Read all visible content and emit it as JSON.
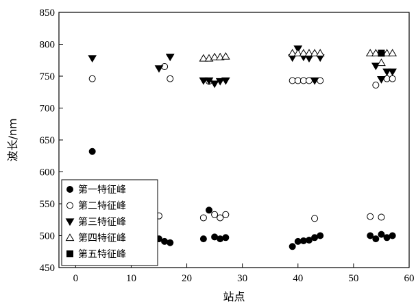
{
  "chart_data": {
    "type": "scatter",
    "xlabel": "站点",
    "ylabel": "波长/nm",
    "xlim": [
      -3,
      60
    ],
    "ylim": [
      450,
      850
    ],
    "xticks": [
      0,
      10,
      20,
      30,
      40,
      50,
      60
    ],
    "yticks": [
      450,
      500,
      550,
      600,
      650,
      700,
      750,
      800,
      850
    ],
    "grid": false,
    "legend_position": "bottom-left",
    "series": [
      {
        "name": "第一特征峰",
        "marker": "filled-circle",
        "color": "#000000",
        "points": [
          [
            3,
            632
          ],
          [
            15,
            495
          ],
          [
            16,
            491
          ],
          [
            17,
            489
          ],
          [
            23,
            495
          ],
          [
            24,
            540
          ],
          [
            25,
            498
          ],
          [
            26,
            495
          ],
          [
            27,
            497
          ],
          [
            39,
            483
          ],
          [
            40,
            491
          ],
          [
            41,
            492
          ],
          [
            42,
            493
          ],
          [
            43,
            497
          ],
          [
            44,
            500
          ],
          [
            53,
            500
          ],
          [
            54,
            495
          ],
          [
            55,
            502
          ],
          [
            56,
            497
          ],
          [
            57,
            500
          ]
        ]
      },
      {
        "name": "第二特征峰",
        "marker": "open-circle",
        "color": "#000000",
        "points": [
          [
            3,
            746
          ],
          [
            15,
            531
          ],
          [
            16,
            765
          ],
          [
            17,
            746
          ],
          [
            23,
            528
          ],
          [
            24,
            742
          ],
          [
            25,
            533
          ],
          [
            26,
            528
          ],
          [
            27,
            533
          ],
          [
            39,
            743
          ],
          [
            40,
            743
          ],
          [
            41,
            743
          ],
          [
            42,
            743
          ],
          [
            43,
            527
          ],
          [
            44,
            743
          ],
          [
            53,
            530
          ],
          [
            54,
            736
          ],
          [
            55,
            529
          ],
          [
            56,
            746
          ],
          [
            57,
            746
          ]
        ]
      },
      {
        "name": "第三特征峰",
        "marker": "filled-triangle-down",
        "color": "#000000",
        "points": [
          [
            3,
            778
          ],
          [
            15,
            762
          ],
          [
            17,
            780
          ],
          [
            23,
            743
          ],
          [
            24,
            743
          ],
          [
            25,
            738
          ],
          [
            26,
            742
          ],
          [
            27,
            743
          ],
          [
            39,
            779
          ],
          [
            40,
            793
          ],
          [
            41,
            780
          ],
          [
            42,
            778
          ],
          [
            43,
            743
          ],
          [
            44,
            779
          ],
          [
            54,
            766
          ],
          [
            55,
            745
          ],
          [
            56,
            757
          ],
          [
            57,
            757
          ]
        ]
      },
      {
        "name": "第四特征峰",
        "marker": "open-triangle-up",
        "color": "#000000",
        "points": [
          [
            23,
            778
          ],
          [
            24,
            778
          ],
          [
            25,
            780
          ],
          [
            26,
            780
          ],
          [
            27,
            781
          ],
          [
            39,
            786
          ],
          [
            40,
            786
          ],
          [
            41,
            786
          ],
          [
            42,
            786
          ],
          [
            43,
            786
          ],
          [
            44,
            786
          ],
          [
            53,
            786
          ],
          [
            54,
            786
          ],
          [
            55,
            771
          ],
          [
            56,
            786
          ],
          [
            57,
            786
          ]
        ]
      },
      {
        "name": "第五特征峰",
        "marker": "filled-square",
        "color": "#000000",
        "points": [
          [
            55,
            786
          ]
        ]
      }
    ]
  }
}
